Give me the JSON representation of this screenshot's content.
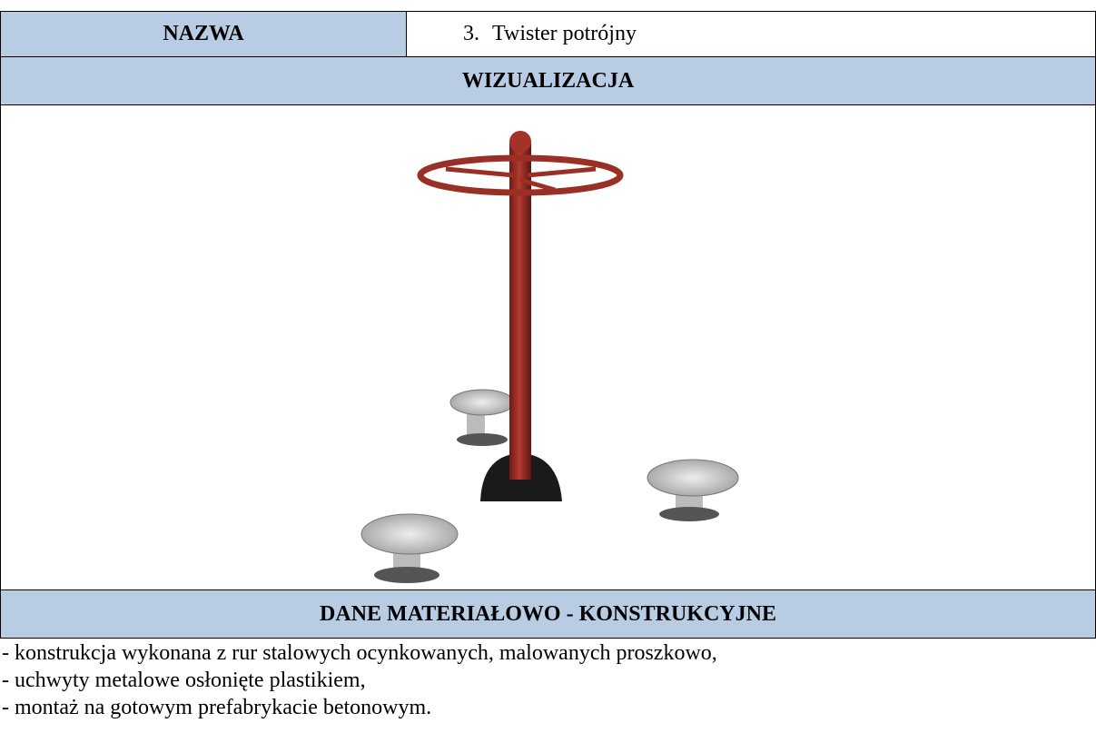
{
  "table": {
    "name_label": "NAZWA",
    "name_number": "3.",
    "name_value": "Twister potrójny",
    "visual_header": "WIZUALIZACJA",
    "data_header": "DANE MATERIAŁOWO - KONSTRUKCYJNE",
    "items": [
      "- konstrukcja wykonana z rur stalowych ocynkowanych, malowanych proszkowo,",
      "- uchwyty metalowe osłonięte plastikiem,",
      "- montaż na gotowym prefabrykacie betonowym."
    ]
  }
}
